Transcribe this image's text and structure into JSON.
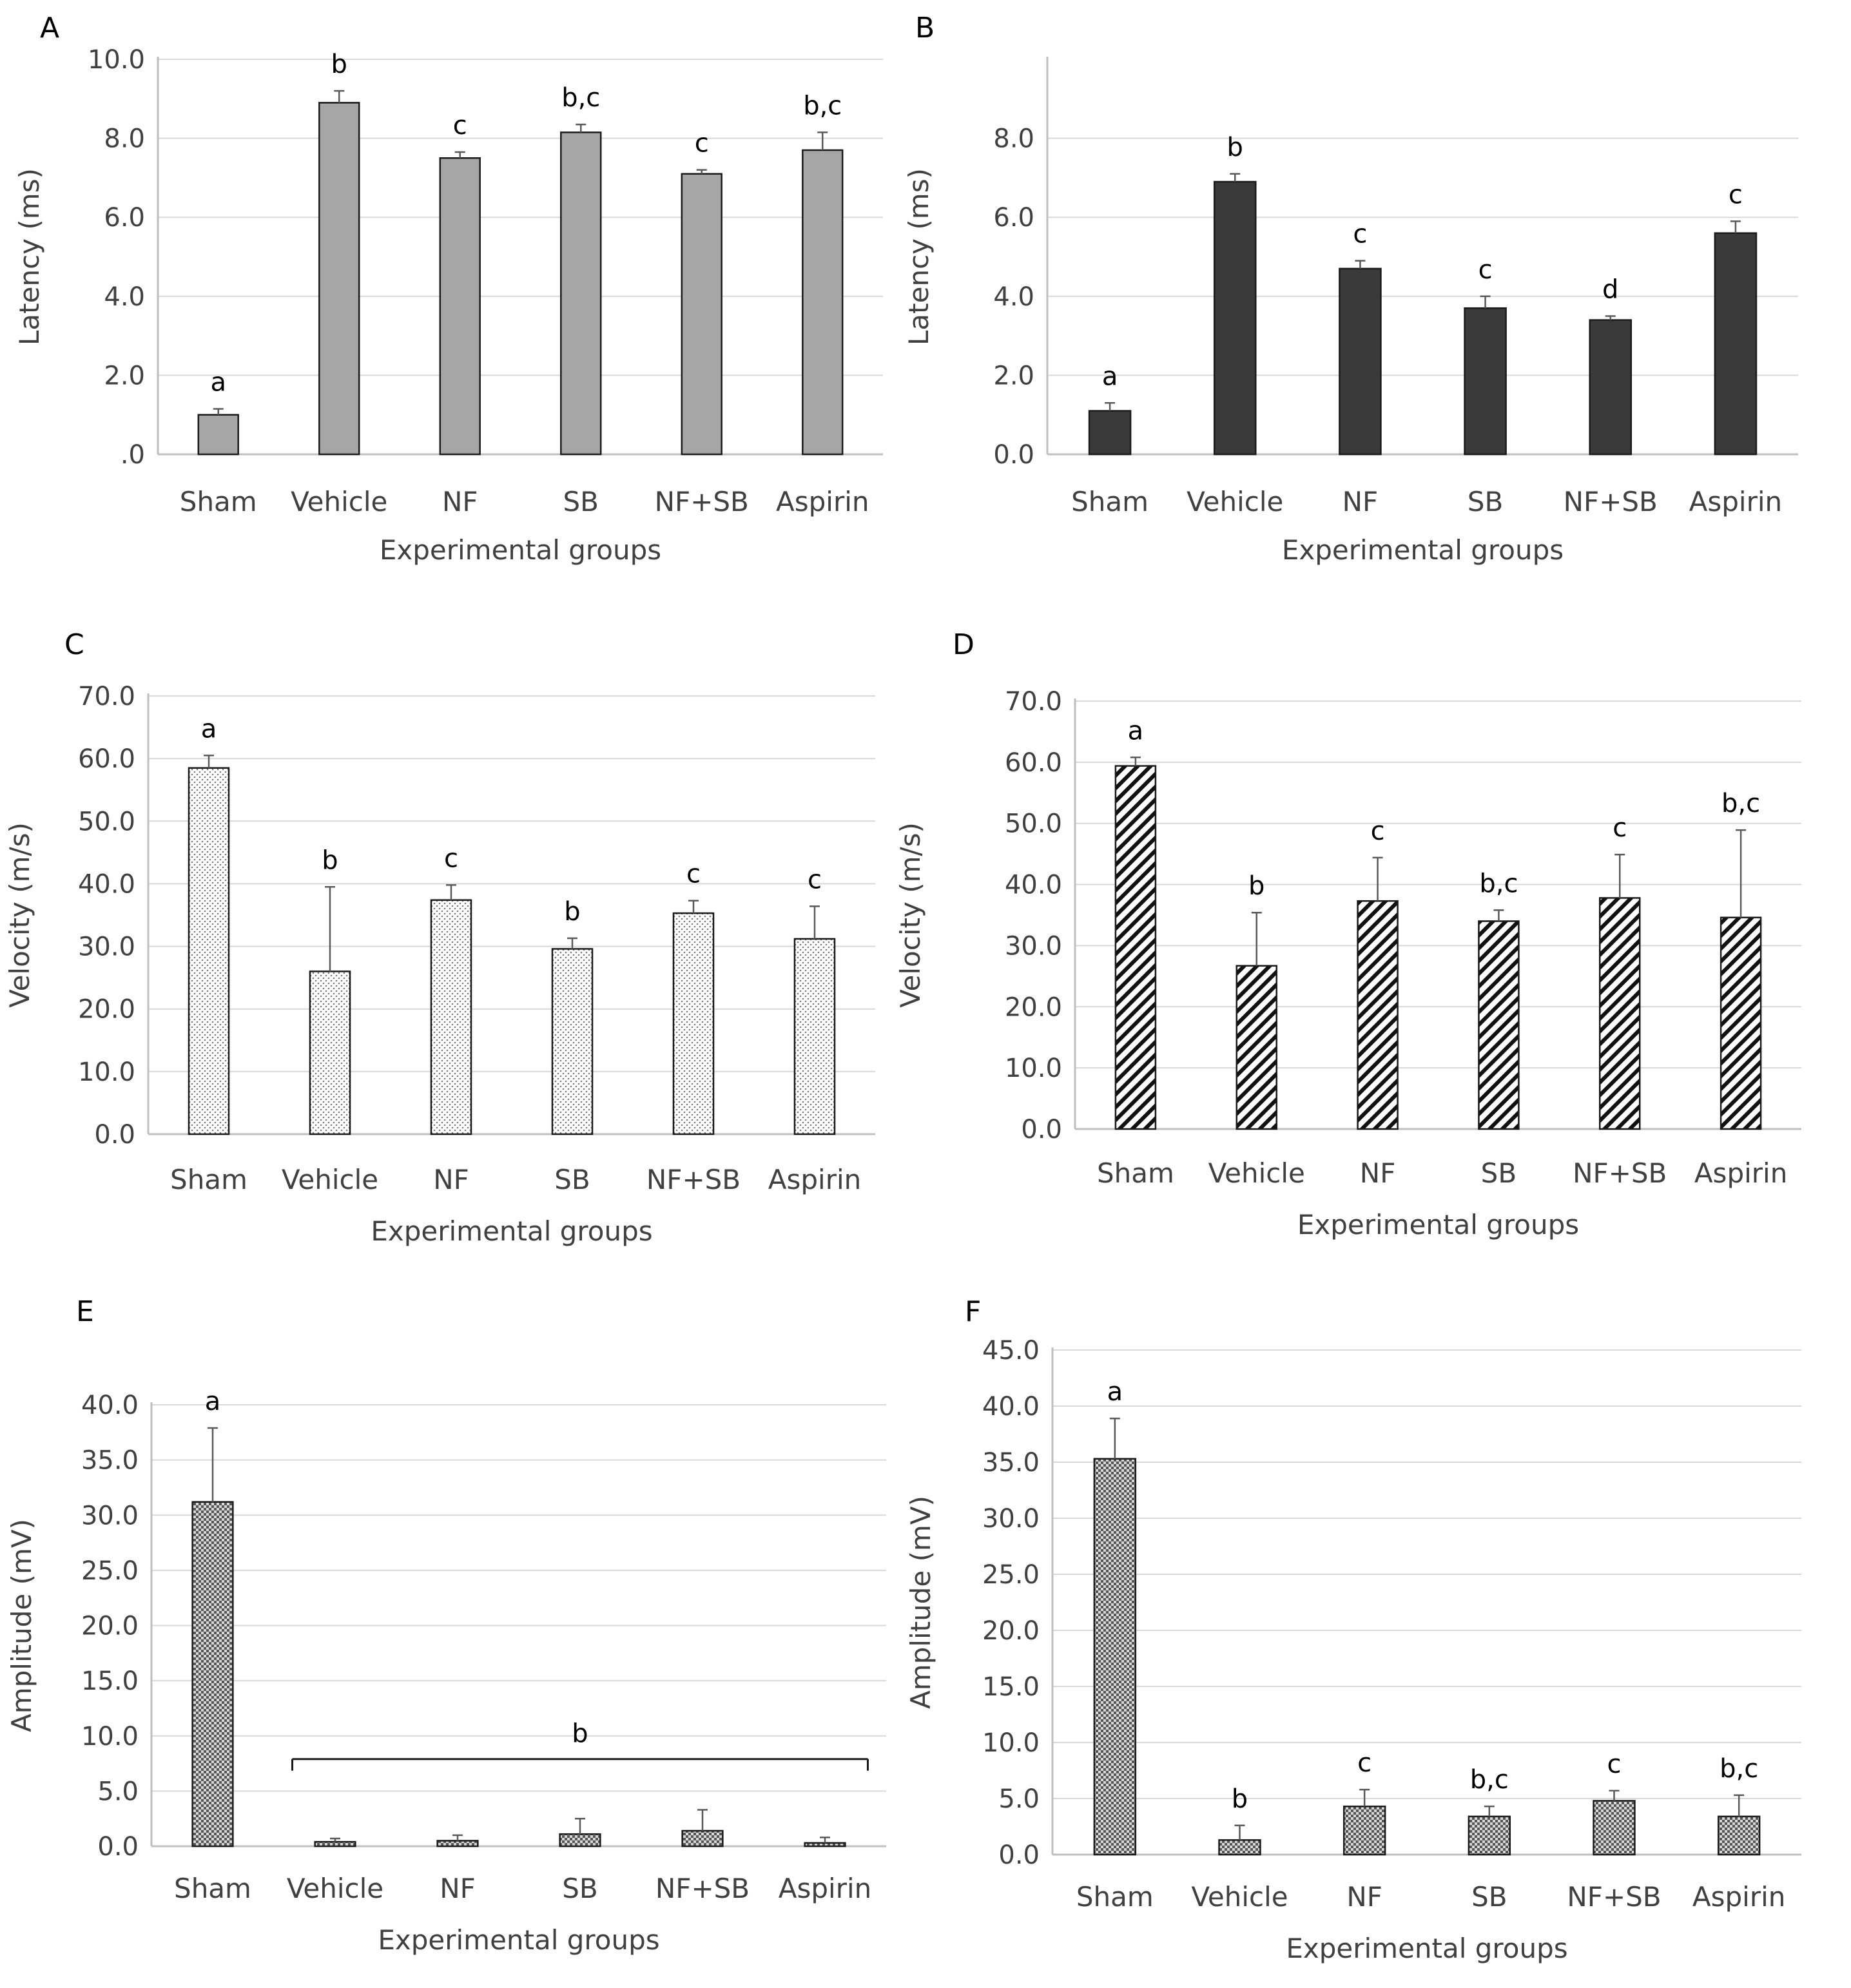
{
  "chart_data": [
    {
      "panel": "A",
      "type": "bar",
      "categories": [
        "Sham",
        "Vehicle",
        "NF",
        "SB",
        "NF+SB",
        "Aspirin"
      ],
      "values": [
        1.0,
        8.9,
        7.5,
        8.15,
        7.1,
        7.7
      ],
      "errors": [
        0.15,
        0.3,
        0.15,
        0.2,
        0.1,
        0.45
      ],
      "sig_labels": [
        "a",
        "b",
        "c",
        "b,c",
        "c",
        "b,c"
      ],
      "ylim": [
        0,
        10
      ],
      "yticks": [
        ".0",
        "2.0",
        "4.0",
        "6.0",
        "8.0",
        "10.0"
      ],
      "xlabel": "Experimental groups",
      "ylabel": "Latency (ms)",
      "grid": true,
      "style": {
        "fill": "#a6a6a6",
        "pattern": "solid"
      }
    },
    {
      "panel": "B",
      "type": "bar",
      "categories": [
        "Sham",
        "Vehicle",
        "NF",
        "SB",
        "NF+SB",
        "Aspirin"
      ],
      "values": [
        1.1,
        6.9,
        4.7,
        3.7,
        3.4,
        5.6
      ],
      "errors": [
        0.2,
        0.2,
        0.2,
        0.3,
        0.1,
        0.3
      ],
      "sig_labels": [
        "a",
        "b",
        "c",
        "c",
        "d",
        "c"
      ],
      "ylim": [
        0,
        10
      ],
      "yticks": [
        "0.0",
        "2.0",
        "4.0",
        "6.0",
        "8.0"
      ],
      "xlabel": "Experimental groups",
      "ylabel": "Latency (ms)",
      "grid": true,
      "style": {
        "fill": "#3a3a3a",
        "pattern": "solid"
      }
    },
    {
      "panel": "C",
      "type": "bar",
      "categories": [
        "Sham",
        "Vehicle",
        "NF",
        "SB",
        "NF+SB",
        "Aspirin"
      ],
      "values": [
        58.5,
        26.0,
        37.4,
        29.6,
        35.3,
        31.2
      ],
      "errors": [
        2.0,
        13.5,
        2.4,
        1.7,
        2.0,
        5.2
      ],
      "sig_labels": [
        "a",
        "b",
        "c",
        "b",
        "c",
        "c"
      ],
      "ylim": [
        0,
        70
      ],
      "yticks": [
        "0.0",
        "10.0",
        "20.0",
        "30.0",
        "40.0",
        "50.0",
        "60.0",
        "70.0"
      ],
      "xlabel": "Experimental groups",
      "ylabel": "Velocity (m/s)",
      "grid": true,
      "style": {
        "fill": "#ffffff",
        "pattern": "dots"
      }
    },
    {
      "panel": "D",
      "type": "bar",
      "categories": [
        "Sham",
        "Vehicle",
        "NF",
        "SB",
        "NF+SB",
        "Aspirin"
      ],
      "values": [
        59.4,
        26.7,
        37.3,
        34.0,
        37.8,
        34.6
      ],
      "errors": [
        1.4,
        8.7,
        7.1,
        1.8,
        7.1,
        14.3
      ],
      "sig_labels": [
        "a",
        "b",
        "c",
        "b,c",
        "c",
        "b,c"
      ],
      "ylim": [
        0,
        70
      ],
      "yticks": [
        "0.0",
        "10.0",
        "20.0",
        "30.0",
        "40.0",
        "50.0",
        "60.0",
        "70.0"
      ],
      "xlabel": "Experimental groups",
      "ylabel": "Velocity (m/s)",
      "grid": true,
      "style": {
        "fill": "#ffffff",
        "pattern": "diagonal"
      }
    },
    {
      "panel": "E",
      "type": "bar",
      "categories": [
        "Sham",
        "Vehicle",
        "NF",
        "SB",
        "NF+SB",
        "Aspirin"
      ],
      "values": [
        31.2,
        0.4,
        0.5,
        1.1,
        1.4,
        0.3
      ],
      "errors": [
        6.7,
        0.3,
        0.5,
        1.4,
        1.9,
        0.5
      ],
      "sig_labels": [
        "a",
        "",
        "",
        "",
        "",
        ""
      ],
      "group_label": "b",
      "ylim": [
        0,
        40
      ],
      "yticks": [
        "0.0",
        "5.0",
        "10.0",
        "15.0",
        "20.0",
        "25.0",
        "30.0",
        "35.0",
        "40.0"
      ],
      "xlabel": "Experimental groups",
      "ylabel": "Amplitude (mV)",
      "grid": true,
      "style": {
        "fill": "#8c8c8c",
        "pattern": "checker"
      }
    },
    {
      "panel": "F",
      "type": "bar",
      "categories": [
        "Sham",
        "Vehicle",
        "NF",
        "SB",
        "NF+SB",
        "Aspirin"
      ],
      "values": [
        35.3,
        1.3,
        4.3,
        3.4,
        4.8,
        3.4
      ],
      "errors": [
        3.6,
        1.3,
        1.5,
        0.9,
        0.9,
        1.9
      ],
      "sig_labels": [
        "a",
        "b",
        "c",
        "b,c",
        "c",
        "b,c"
      ],
      "ylim": [
        0,
        45
      ],
      "yticks": [
        "0.0",
        "5.0",
        "10.0",
        "15.0",
        "20.0",
        "25.0",
        "30.0",
        "35.0",
        "40.0",
        "45.0"
      ],
      "xlabel": "Experimental groups",
      "ylabel": "Amplitude (mV)",
      "grid": true,
      "style": {
        "fill": "#8c8c8c",
        "pattern": "checker"
      }
    }
  ]
}
